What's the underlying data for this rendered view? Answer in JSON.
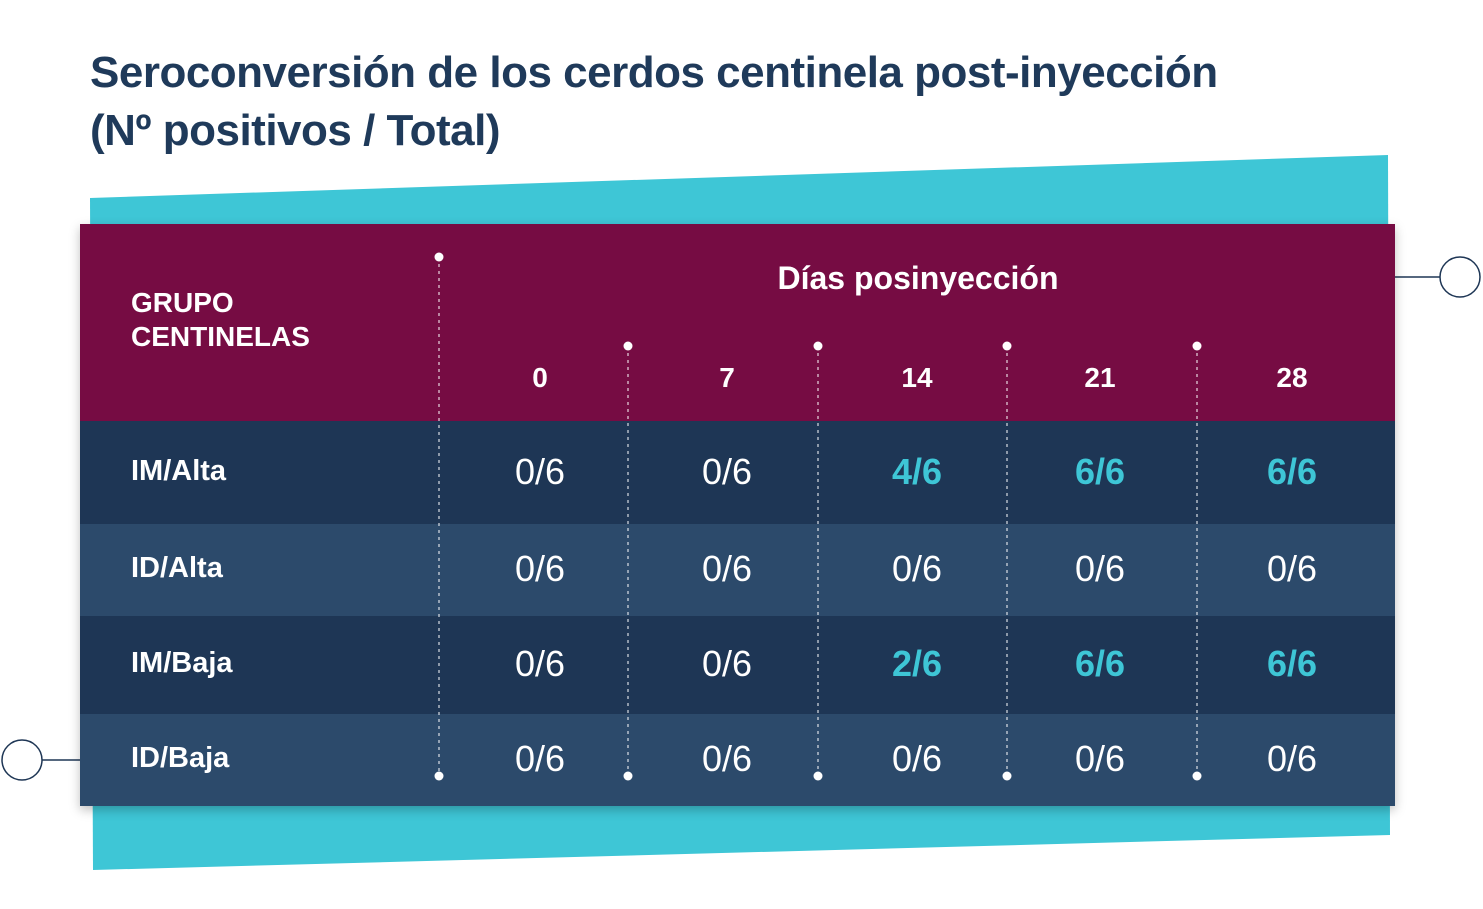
{
  "title": {
    "line1": "Seroconversión de los cerdos centinela post-inyección",
    "line2": "(Nº positivos / Total)"
  },
  "colors": {
    "header_bg": "#760c43",
    "row_dark": "#1e3655",
    "row_light": "#2c4a6b",
    "accent": "#3ec6d6",
    "title": "#1f3a5a"
  },
  "chart_data": {
    "type": "table",
    "group_header": "GRUPO CENTINELAS",
    "group_header_lines": [
      "GRUPO",
      "CENTINELAS"
    ],
    "column_group_header": "Días posinyección",
    "columns": [
      "0",
      "7",
      "14",
      "21",
      "28"
    ],
    "rows": [
      {
        "label": "IM/Alta",
        "values": [
          "0/6",
          "0/6",
          "4/6",
          "6/6",
          "6/6"
        ],
        "highlight": [
          false,
          false,
          true,
          true,
          true
        ]
      },
      {
        "label": "ID/Alta",
        "values": [
          "0/6",
          "0/6",
          "0/6",
          "0/6",
          "0/6"
        ],
        "highlight": [
          false,
          false,
          false,
          false,
          false
        ]
      },
      {
        "label": "IM/Baja",
        "values": [
          "0/6",
          "0/6",
          "2/6",
          "6/6",
          "6/6"
        ],
        "highlight": [
          false,
          false,
          true,
          true,
          true
        ]
      },
      {
        "label": "ID/Baja",
        "values": [
          "0/6",
          "0/6",
          "0/6",
          "0/6",
          "0/6"
        ],
        "highlight": [
          false,
          false,
          false,
          false,
          false
        ]
      }
    ]
  }
}
